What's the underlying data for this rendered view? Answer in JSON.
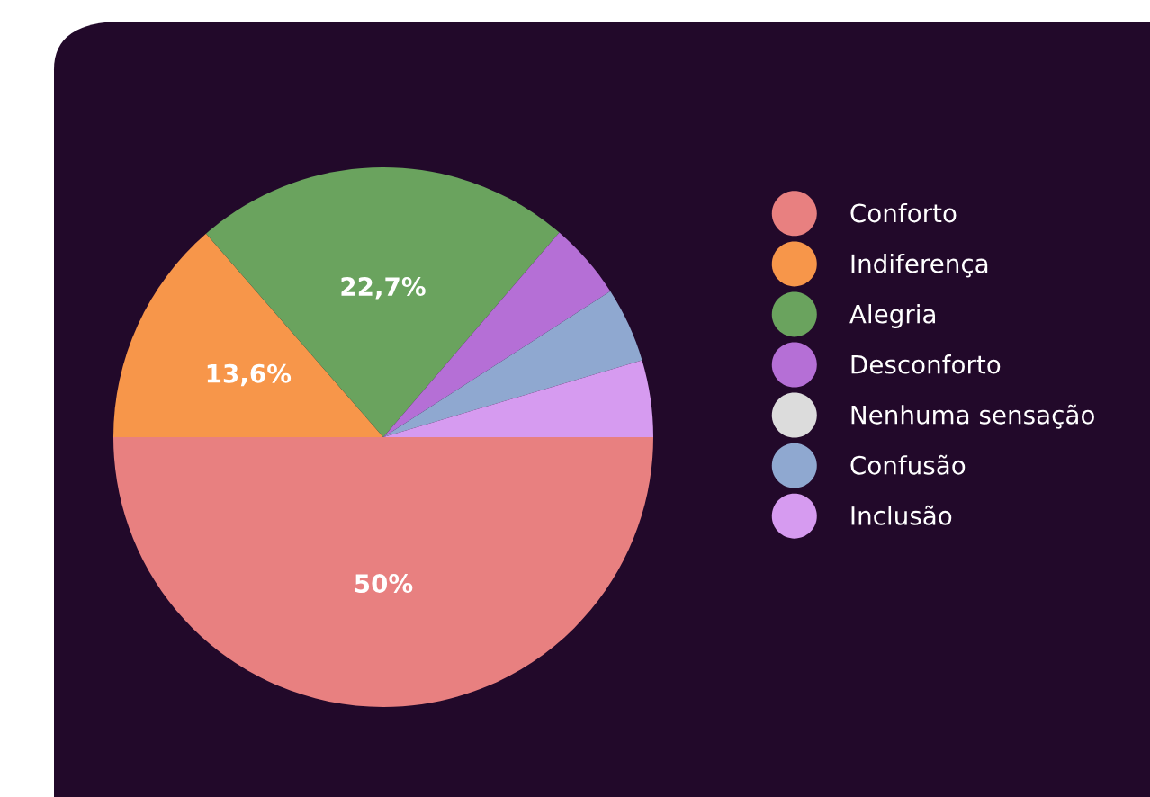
{
  "chart_data": {
    "type": "pie",
    "categories": [
      "Conforto",
      "Indiferença",
      "Alegria",
      "Desconforto",
      "Nenhuma sensação",
      "Confusão",
      "Inclusão"
    ],
    "values": [
      50,
      13.6,
      22.7,
      4.6,
      0,
      4.5,
      4.6
    ],
    "colors": [
      "#e88080",
      "#f7964a",
      "#6aa35e",
      "#b56fd6",
      "#dcdcdc",
      "#8fa8d0",
      "#d69bf0"
    ],
    "value_labels": [
      "50%",
      "13,6%",
      "22,7%",
      null,
      null,
      null,
      null
    ],
    "legend": "right"
  }
}
